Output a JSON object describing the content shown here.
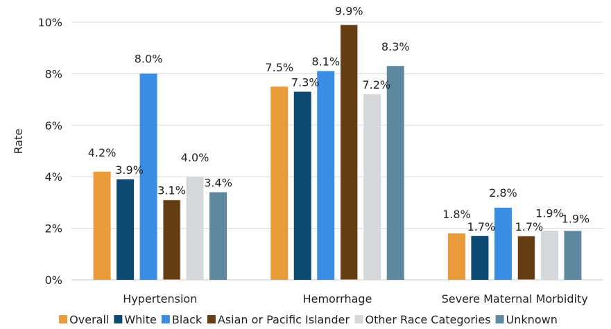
{
  "chart_data": {
    "type": "bar",
    "ylabel": "Rate",
    "xlabel": "",
    "ylim": [
      0,
      10
    ],
    "yticks": [
      "0%",
      "2%",
      "4%",
      "6%",
      "8%",
      "10%"
    ],
    "grid": true,
    "legend_position": "bottom",
    "categories": [
      "Hypertension",
      "Hemorrhage",
      "Severe Maternal Morbidity"
    ],
    "series": [
      {
        "name": "Overall",
        "color": "#E99B3A",
        "values": [
          4.2,
          7.5,
          1.8
        ],
        "labels": [
          "4.2%",
          "7.5%",
          "1.8%"
        ]
      },
      {
        "name": "White",
        "color": "#0E4A72",
        "values": [
          3.9,
          7.3,
          1.7
        ],
        "labels": [
          "3.9%",
          "7.3%",
          "1.7%"
        ]
      },
      {
        "name": "Black",
        "color": "#3A8DE4",
        "values": [
          8.0,
          8.1,
          2.8
        ],
        "labels": [
          "8.0%",
          "8.1%",
          "2.8%"
        ]
      },
      {
        "name": "Asian or Pacific Islander",
        "color": "#663C12",
        "values": [
          3.1,
          9.9,
          1.7
        ],
        "labels": [
          "3.1%",
          "9.9%",
          "1.7%"
        ]
      },
      {
        "name": "Other Race Categories",
        "color": "#D5D8DB",
        "values": [
          4.0,
          7.2,
          1.9
        ],
        "labels": [
          "4.0%",
          "7.2%",
          "1.9%"
        ]
      },
      {
        "name": "Unknown",
        "color": "#5E889F",
        "values": [
          3.4,
          8.3,
          1.9
        ],
        "labels": [
          "3.4%",
          "8.3%",
          "1.9%"
        ]
      }
    ]
  }
}
